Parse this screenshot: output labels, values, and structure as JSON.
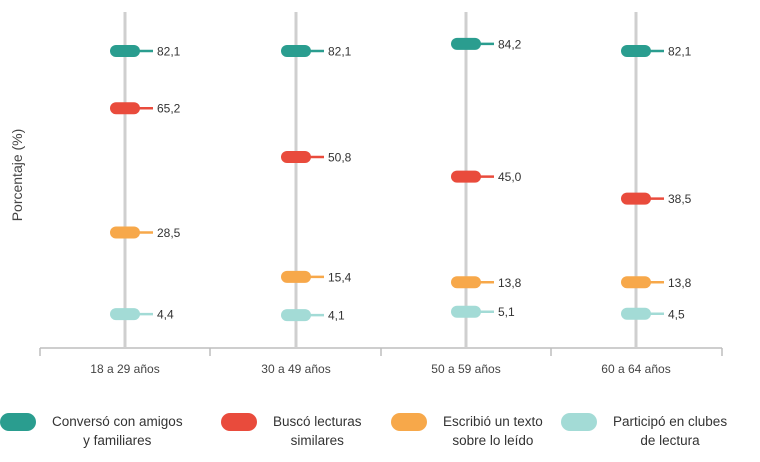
{
  "chart_data": {
    "type": "dot",
    "ylabel": "Porcentaje (%)",
    "categories": [
      "18 a 29 años",
      "30 a 49 años",
      "50 a 59 años",
      "60 a 64 años"
    ],
    "series": [
      {
        "name": "Conversó con amigos y familiares",
        "legend_lines": [
          "Conversó con amigos",
          "y familiares"
        ],
        "color": "#2a9d8f",
        "values": [
          82.1,
          82.1,
          84.2,
          82.1
        ],
        "labels": [
          "82,1",
          "82,1",
          "84,2",
          "82,1"
        ]
      },
      {
        "name": "Buscó lecturas similares",
        "legend_lines": [
          "Buscó lecturas",
          "similares"
        ],
        "color": "#e94b3c",
        "values": [
          65.2,
          50.8,
          45.0,
          38.5
        ],
        "labels": [
          "65,2",
          "50,8",
          "45,0",
          "38,5"
        ]
      },
      {
        "name": "Escribió un texto sobre lo leído",
        "legend_lines": [
          "Escribió un texto",
          "sobre lo leído"
        ],
        "color": "#f7a84a",
        "values": [
          28.5,
          15.4,
          13.8,
          13.8
        ],
        "labels": [
          "28,5",
          "15,4",
          "13,8",
          "13,8"
        ]
      },
      {
        "name": "Participó en clubes de lectura",
        "legend_lines": [
          "Participó en clubes",
          "de lectura"
        ],
        "color": "#a3dbd6",
        "values": [
          4.4,
          4.1,
          5.1,
          4.5
        ],
        "labels": [
          "4,4",
          "4,1",
          "5,1",
          "4,5"
        ]
      }
    ],
    "grid": false,
    "legend_position": "bottom"
  }
}
